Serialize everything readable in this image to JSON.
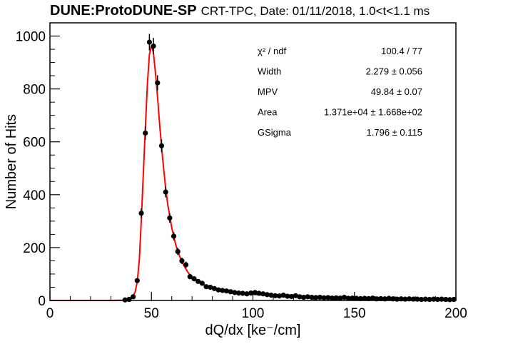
{
  "title": {
    "experiment": "DUNE:ProtoDUNE-SP",
    "subtitle": "CRT-TPC, Date: 01/11/2018, 1.0<t<1.1 ms"
  },
  "chart_data": {
    "type": "scatter",
    "xlabel": "dQ/dx [ke⁻/cm]",
    "ylabel": "Number of Hits",
    "xlim": [
      0,
      200
    ],
    "ylim": [
      0,
      1050
    ],
    "x_ticks": [
      0,
      50,
      100,
      150,
      200
    ],
    "y_ticks": [
      0,
      200,
      400,
      600,
      800,
      1000
    ],
    "grid": false,
    "series": [
      {
        "kind": "data-points-with-error-bars",
        "marker_color": "#000000",
        "points": [
          {
            "x": 37,
            "y": 2
          },
          {
            "x": 39,
            "y": 4
          },
          {
            "x": 41,
            "y": 14
          },
          {
            "x": 43,
            "y": 75
          },
          {
            "x": 45,
            "y": 330
          },
          {
            "x": 47,
            "y": 633
          },
          {
            "x": 49,
            "y": 977
          },
          {
            "x": 51,
            "y": 962
          },
          {
            "x": 53,
            "y": 823
          },
          {
            "x": 55,
            "y": 585
          },
          {
            "x": 57,
            "y": 410
          },
          {
            "x": 59,
            "y": 312
          },
          {
            "x": 61,
            "y": 243
          },
          {
            "x": 63,
            "y": 185
          },
          {
            "x": 65,
            "y": 150
          },
          {
            "x": 67,
            "y": 135
          },
          {
            "x": 69,
            "y": 90
          },
          {
            "x": 71,
            "y": 82
          },
          {
            "x": 73,
            "y": 72
          },
          {
            "x": 75,
            "y": 65
          },
          {
            "x": 77,
            "y": 52
          },
          {
            "x": 79,
            "y": 50
          },
          {
            "x": 81,
            "y": 45
          },
          {
            "x": 83,
            "y": 40
          },
          {
            "x": 85,
            "y": 38
          },
          {
            "x": 87,
            "y": 36
          },
          {
            "x": 89,
            "y": 33
          },
          {
            "x": 91,
            "y": 30
          },
          {
            "x": 93,
            "y": 28
          },
          {
            "x": 95,
            "y": 27
          },
          {
            "x": 97,
            "y": 25
          },
          {
            "x": 99,
            "y": 28
          },
          {
            "x": 101,
            "y": 30
          },
          {
            "x": 103,
            "y": 27
          },
          {
            "x": 105,
            "y": 25
          },
          {
            "x": 107,
            "y": 22
          },
          {
            "x": 109,
            "y": 20
          },
          {
            "x": 111,
            "y": 18
          },
          {
            "x": 113,
            "y": 17
          },
          {
            "x": 115,
            "y": 20
          },
          {
            "x": 117,
            "y": 16
          },
          {
            "x": 119,
            "y": 15
          },
          {
            "x": 121,
            "y": 18
          },
          {
            "x": 123,
            "y": 14
          },
          {
            "x": 125,
            "y": 12
          },
          {
            "x": 127,
            "y": 14
          },
          {
            "x": 129,
            "y": 12
          },
          {
            "x": 131,
            "y": 11
          },
          {
            "x": 133,
            "y": 12
          },
          {
            "x": 135,
            "y": 10
          },
          {
            "x": 137,
            "y": 11
          },
          {
            "x": 139,
            "y": 9
          },
          {
            "x": 141,
            "y": 10
          },
          {
            "x": 143,
            "y": 9
          },
          {
            "x": 145,
            "y": 12
          },
          {
            "x": 147,
            "y": 8
          },
          {
            "x": 149,
            "y": 9
          },
          {
            "x": 151,
            "y": 8
          },
          {
            "x": 153,
            "y": 7
          },
          {
            "x": 155,
            "y": 8
          },
          {
            "x": 157,
            "y": 7
          },
          {
            "x": 159,
            "y": 9
          },
          {
            "x": 161,
            "y": 6
          },
          {
            "x": 163,
            "y": 7
          },
          {
            "x": 165,
            "y": 6
          },
          {
            "x": 167,
            "y": 8
          },
          {
            "x": 169,
            "y": 6
          },
          {
            "x": 171,
            "y": 5
          },
          {
            "x": 173,
            "y": 6
          },
          {
            "x": 175,
            "y": 5
          },
          {
            "x": 177,
            "y": 6
          },
          {
            "x": 179,
            "y": 5
          },
          {
            "x": 181,
            "y": 5
          },
          {
            "x": 183,
            "y": 4
          },
          {
            "x": 185,
            "y": 5
          },
          {
            "x": 187,
            "y": 4
          },
          {
            "x": 189,
            "y": 5
          },
          {
            "x": 191,
            "y": 4
          },
          {
            "x": 193,
            "y": 5
          },
          {
            "x": 195,
            "y": 4
          },
          {
            "x": 197,
            "y": 3
          },
          {
            "x": 199,
            "y": 4
          }
        ]
      },
      {
        "kind": "fit-curve",
        "color": "#ff0000",
        "points": [
          {
            "x": 0,
            "y": 0
          },
          {
            "x": 30,
            "y": 0
          },
          {
            "x": 36,
            "y": 1
          },
          {
            "x": 38,
            "y": 3
          },
          {
            "x": 40,
            "y": 8
          },
          {
            "x": 41,
            "y": 17
          },
          {
            "x": 42,
            "y": 33
          },
          {
            "x": 43,
            "y": 70
          },
          {
            "x": 44,
            "y": 150
          },
          {
            "x": 45,
            "y": 300
          },
          {
            "x": 46,
            "y": 480
          },
          {
            "x": 47,
            "y": 650
          },
          {
            "x": 48,
            "y": 820
          },
          {
            "x": 49,
            "y": 930
          },
          {
            "x": 50,
            "y": 965
          },
          {
            "x": 51,
            "y": 935
          },
          {
            "x": 52,
            "y": 860
          },
          {
            "x": 53,
            "y": 770
          },
          {
            "x": 54,
            "y": 670
          },
          {
            "x": 55,
            "y": 580
          },
          {
            "x": 56,
            "y": 500
          },
          {
            "x": 57,
            "y": 425
          },
          {
            "x": 58,
            "y": 365
          },
          {
            "x": 60,
            "y": 275
          },
          {
            "x": 62,
            "y": 210
          },
          {
            "x": 64,
            "y": 165
          },
          {
            "x": 66,
            "y": 132
          },
          {
            "x": 68,
            "y": 106
          },
          {
            "x": 70,
            "y": 88
          },
          {
            "x": 73,
            "y": 70
          },
          {
            "x": 76,
            "y": 58
          },
          {
            "x": 80,
            "y": 47
          },
          {
            "x": 85,
            "y": 38
          },
          {
            "x": 90,
            "y": 31
          },
          {
            "x": 100,
            "y": 23
          },
          {
            "x": 110,
            "y": 18
          },
          {
            "x": 120,
            "y": 14
          },
          {
            "x": 130,
            "y": 11
          },
          {
            "x": 140,
            "y": 9
          },
          {
            "x": 150,
            "y": 8
          },
          {
            "x": 160,
            "y": 7
          },
          {
            "x": 170,
            "y": 6
          },
          {
            "x": 180,
            "y": 5
          },
          {
            "x": 190,
            "y": 4
          },
          {
            "x": 200,
            "y": 4
          }
        ]
      }
    ],
    "stats_box": [
      {
        "label": "χ² / ndf",
        "value": "100.4 / 77"
      },
      {
        "label": "Width",
        "value": "2.279 ± 0.056"
      },
      {
        "label": "MPV",
        "value": "49.84 ± 0.07"
      },
      {
        "label": "Area",
        "value": "1.371e+04 ± 1.668e+02"
      },
      {
        "label": "GSigma",
        "value": "1.796 ± 0.115"
      }
    ]
  }
}
